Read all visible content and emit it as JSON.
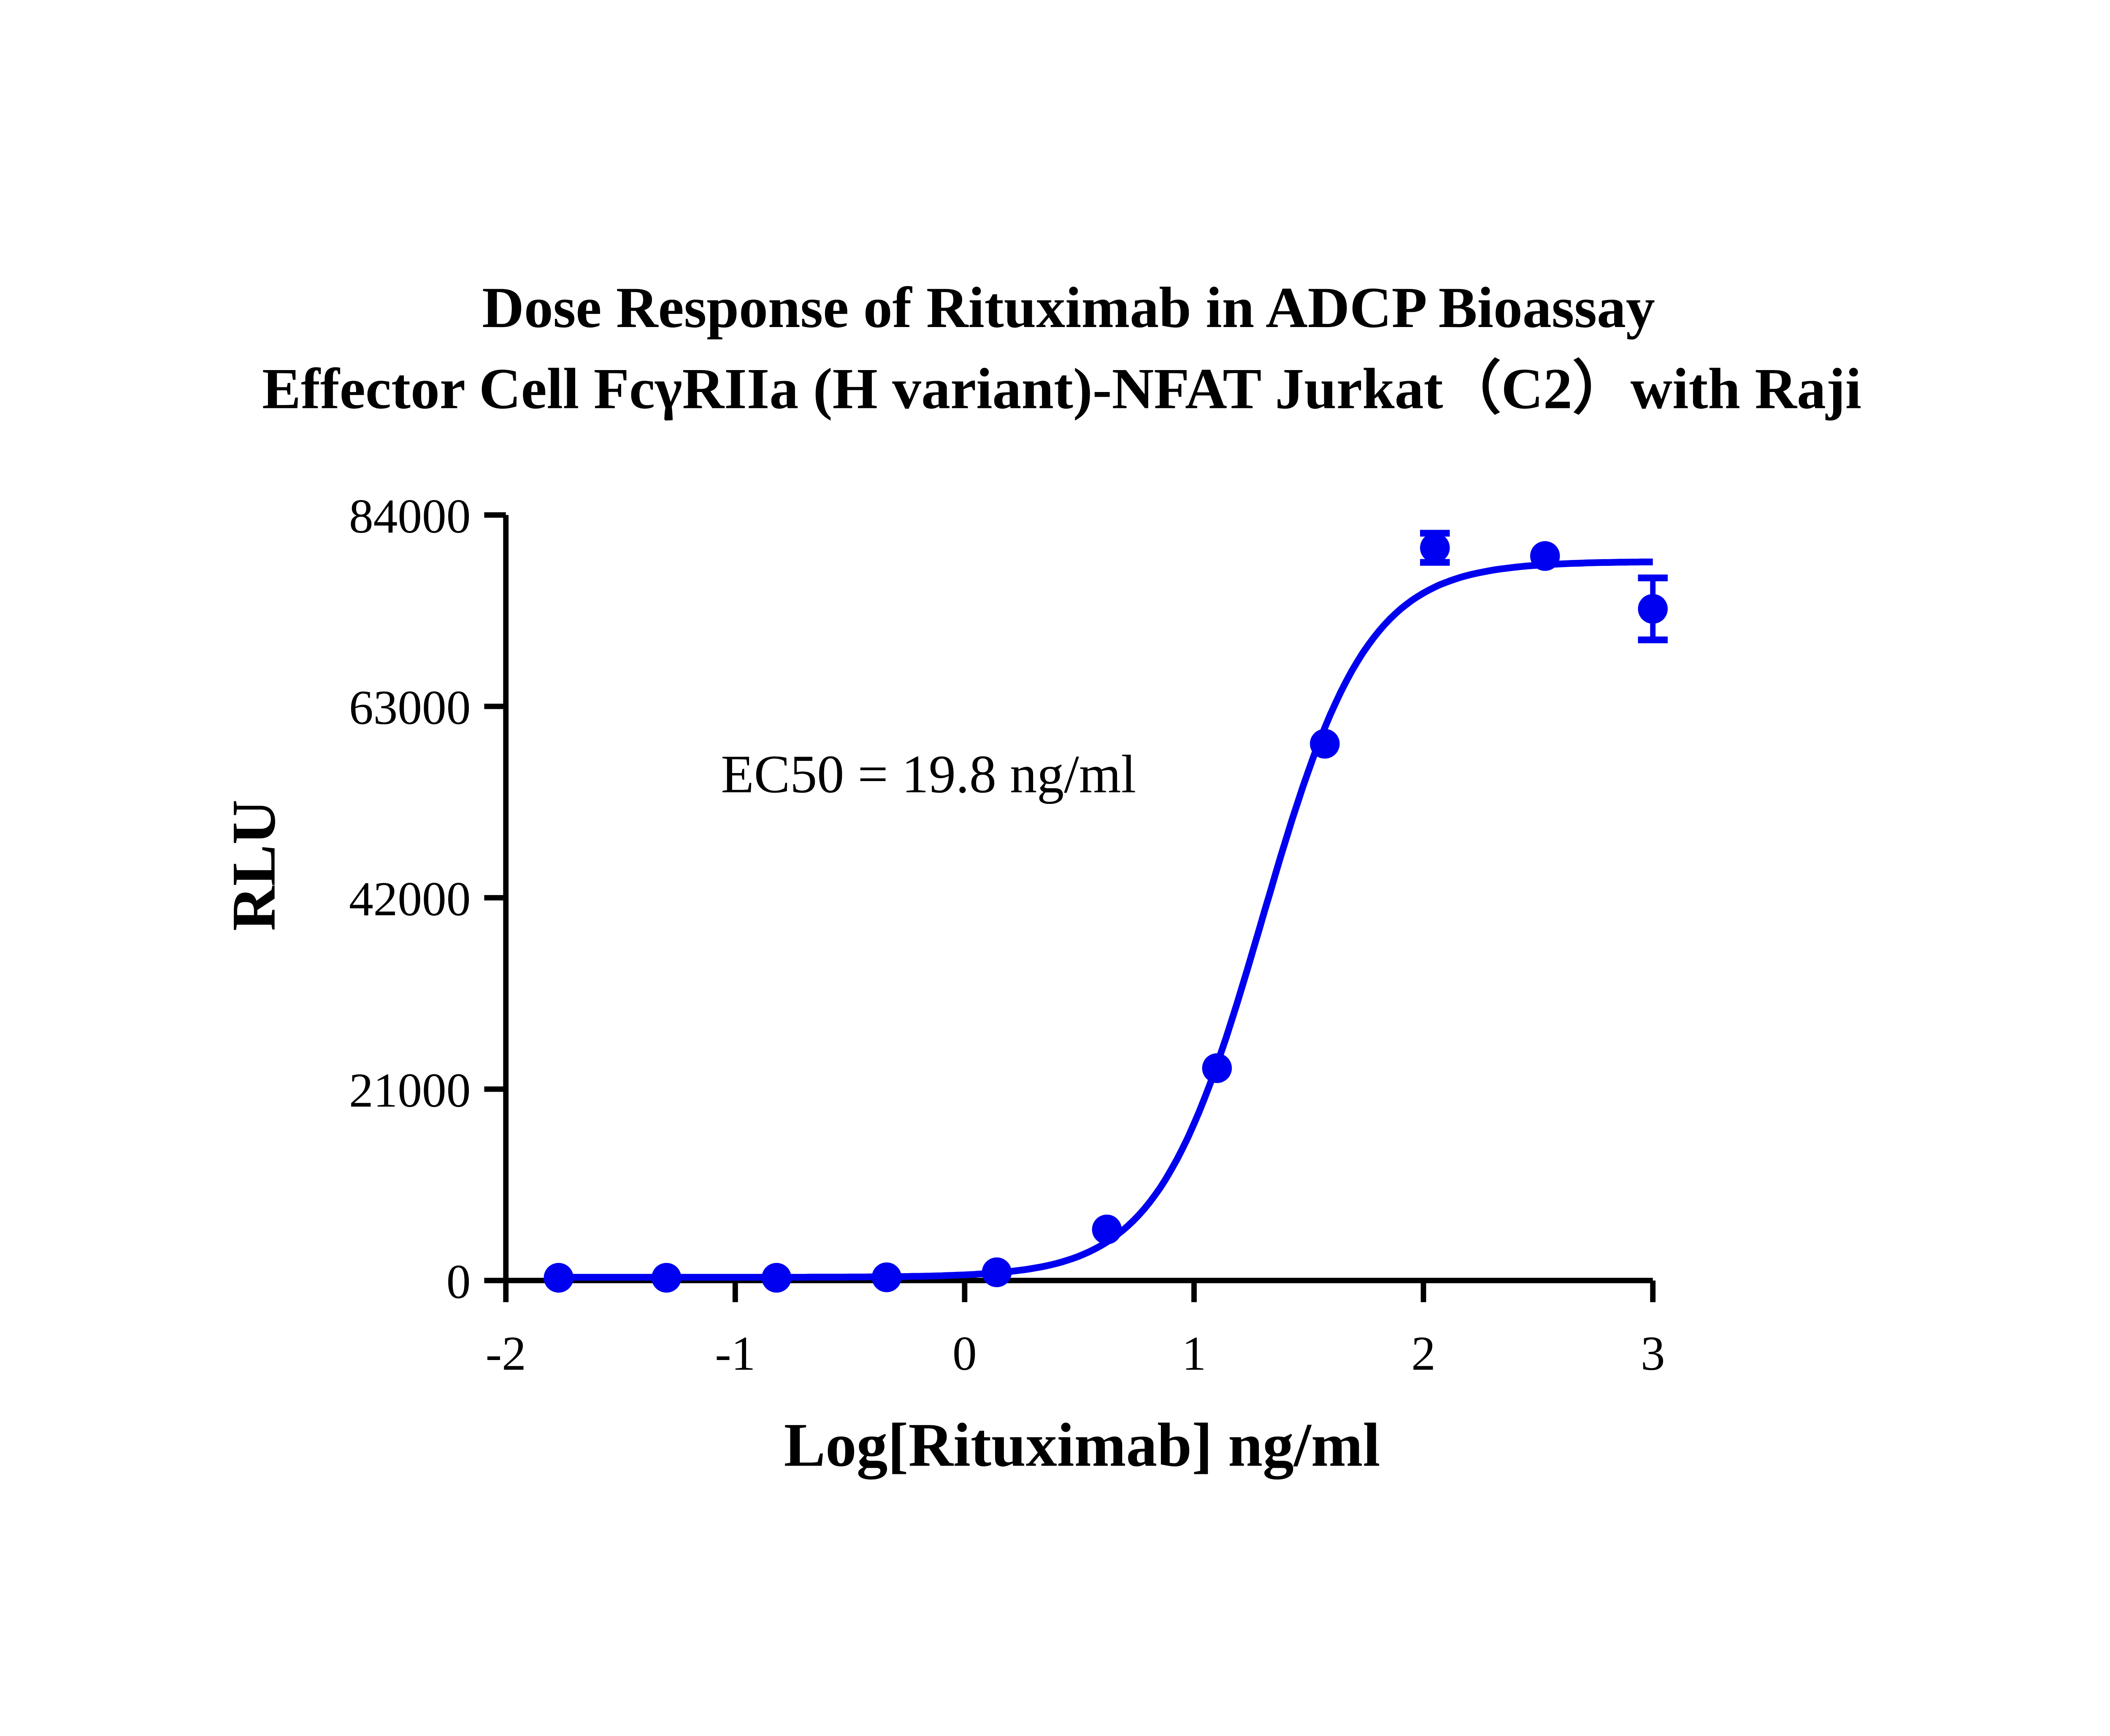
{
  "chart_data": {
    "type": "scatter",
    "title": "Dose Response of Rituximab in ADCP Bioassay",
    "subtitle": "Effector Cell FcγRIIa (H variant)-NFAT Jurkat（C2）with Raji",
    "xlabel": "Log[Rituximab] ng/ml",
    "ylabel": "RLU",
    "xlim": [
      -2,
      3
    ],
    "ylim": [
      0,
      84000
    ],
    "xticks": [
      "-2",
      "-1",
      "0",
      "1",
      "2",
      "3"
    ],
    "yticks": [
      "0",
      "21000",
      "42000",
      "63000",
      "84000"
    ],
    "grid": false,
    "annotation": "EC50 = 19.8 ng/ml",
    "color": "#0000f0",
    "series": [
      {
        "x": [
          -1.77,
          -1.3,
          -0.82,
          -0.34,
          0.14,
          0.62,
          1.1,
          1.57,
          2.05,
          2.53,
          3.0
        ],
        "y": [
          300,
          300,
          300,
          350,
          900,
          5600,
          23300,
          58900,
          80400,
          79500,
          73700
        ],
        "error": [
          0,
          0,
          0,
          0,
          0,
          0,
          0,
          0,
          1600,
          0,
          3400
        ],
        "fit": "four-parameter logistic"
      }
    ]
  }
}
